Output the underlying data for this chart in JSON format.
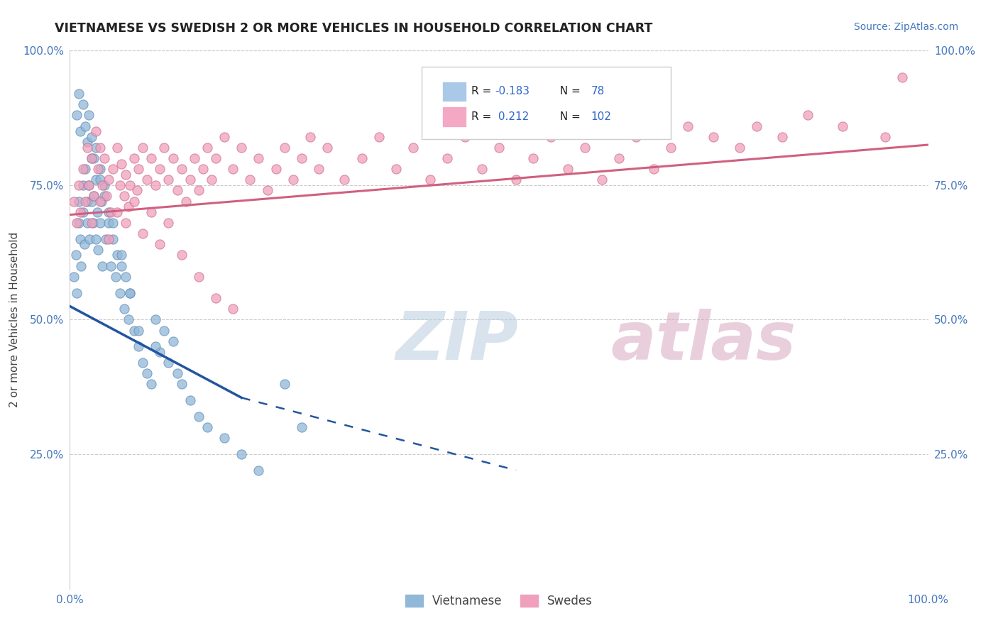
{
  "title": "VIETNAMESE VS SWEDISH 2 OR MORE VEHICLES IN HOUSEHOLD CORRELATION CHART",
  "source_text": "Source: ZipAtlas.com",
  "ylabel": "2 or more Vehicles in Household",
  "watermark_zip": "ZIP",
  "watermark_atlas": "atlas",
  "blue_color": "#92b8d8",
  "blue_edge": "#6090b8",
  "pink_color": "#f0a0bc",
  "pink_edge": "#d07090",
  "blue_line_color": "#2255a0",
  "pink_line_color": "#d06080",
  "xlim": [
    0.0,
    1.0
  ],
  "ylim": [
    0.0,
    1.0
  ],
  "blue_trend_x0": 0.0,
  "blue_trend_y0": 0.525,
  "blue_trend_x1": 0.2,
  "blue_trend_y1": 0.355,
  "blue_trend_x2": 0.52,
  "blue_trend_y2": 0.22,
  "pink_trend_x0": 0.0,
  "pink_trend_y0": 0.695,
  "pink_trend_x1": 1.0,
  "pink_trend_y1": 0.825,
  "blue_scatter_x": [
    0.005,
    0.007,
    0.008,
    0.01,
    0.01,
    0.012,
    0.013,
    0.015,
    0.015,
    0.017,
    0.018,
    0.02,
    0.02,
    0.022,
    0.023,
    0.025,
    0.025,
    0.027,
    0.028,
    0.03,
    0.03,
    0.032,
    0.033,
    0.035,
    0.035,
    0.037,
    0.038,
    0.04,
    0.042,
    0.045,
    0.048,
    0.05,
    0.053,
    0.055,
    0.058,
    0.06,
    0.063,
    0.065,
    0.068,
    0.07,
    0.075,
    0.08,
    0.085,
    0.09,
    0.095,
    0.1,
    0.105,
    0.11,
    0.115,
    0.12,
    0.125,
    0.13,
    0.14,
    0.15,
    0.16,
    0.18,
    0.2,
    0.22,
    0.25,
    0.27,
    0.008,
    0.01,
    0.012,
    0.015,
    0.018,
    0.02,
    0.022,
    0.025,
    0.028,
    0.03,
    0.035,
    0.04,
    0.045,
    0.05,
    0.06,
    0.07,
    0.08,
    0.1
  ],
  "blue_scatter_y": [
    0.58,
    0.62,
    0.55,
    0.68,
    0.72,
    0.65,
    0.6,
    0.75,
    0.7,
    0.64,
    0.78,
    0.72,
    0.68,
    0.75,
    0.65,
    0.8,
    0.72,
    0.68,
    0.73,
    0.76,
    0.65,
    0.7,
    0.63,
    0.78,
    0.68,
    0.72,
    0.6,
    0.75,
    0.65,
    0.68,
    0.6,
    0.65,
    0.58,
    0.62,
    0.55,
    0.6,
    0.52,
    0.58,
    0.5,
    0.55,
    0.48,
    0.45,
    0.42,
    0.4,
    0.38,
    0.5,
    0.44,
    0.48,
    0.42,
    0.46,
    0.4,
    0.38,
    0.35,
    0.32,
    0.3,
    0.28,
    0.25,
    0.22,
    0.38,
    0.3,
    0.88,
    0.92,
    0.85,
    0.9,
    0.86,
    0.83,
    0.88,
    0.84,
    0.8,
    0.82,
    0.76,
    0.73,
    0.7,
    0.68,
    0.62,
    0.55,
    0.48,
    0.45
  ],
  "pink_scatter_x": [
    0.005,
    0.008,
    0.01,
    0.012,
    0.015,
    0.018,
    0.02,
    0.022,
    0.025,
    0.028,
    0.03,
    0.033,
    0.035,
    0.038,
    0.04,
    0.043,
    0.045,
    0.048,
    0.05,
    0.055,
    0.058,
    0.06,
    0.063,
    0.065,
    0.068,
    0.07,
    0.075,
    0.078,
    0.08,
    0.085,
    0.09,
    0.095,
    0.1,
    0.105,
    0.11,
    0.115,
    0.12,
    0.125,
    0.13,
    0.135,
    0.14,
    0.145,
    0.15,
    0.155,
    0.16,
    0.165,
    0.17,
    0.18,
    0.19,
    0.2,
    0.21,
    0.22,
    0.23,
    0.24,
    0.25,
    0.26,
    0.27,
    0.28,
    0.29,
    0.3,
    0.32,
    0.34,
    0.36,
    0.38,
    0.4,
    0.42,
    0.44,
    0.46,
    0.48,
    0.5,
    0.52,
    0.54,
    0.56,
    0.58,
    0.6,
    0.62,
    0.64,
    0.66,
    0.68,
    0.7,
    0.72,
    0.75,
    0.78,
    0.8,
    0.83,
    0.86,
    0.9,
    0.95,
    0.97,
    0.025,
    0.035,
    0.045,
    0.055,
    0.065,
    0.075,
    0.085,
    0.095,
    0.105,
    0.115,
    0.13,
    0.15,
    0.17,
    0.19
  ],
  "pink_scatter_y": [
    0.72,
    0.68,
    0.75,
    0.7,
    0.78,
    0.72,
    0.82,
    0.75,
    0.8,
    0.73,
    0.85,
    0.78,
    0.82,
    0.75,
    0.8,
    0.73,
    0.76,
    0.7,
    0.78,
    0.82,
    0.75,
    0.79,
    0.73,
    0.77,
    0.71,
    0.75,
    0.8,
    0.74,
    0.78,
    0.82,
    0.76,
    0.8,
    0.75,
    0.78,
    0.82,
    0.76,
    0.8,
    0.74,
    0.78,
    0.72,
    0.76,
    0.8,
    0.74,
    0.78,
    0.82,
    0.76,
    0.8,
    0.84,
    0.78,
    0.82,
    0.76,
    0.8,
    0.74,
    0.78,
    0.82,
    0.76,
    0.8,
    0.84,
    0.78,
    0.82,
    0.76,
    0.8,
    0.84,
    0.78,
    0.82,
    0.76,
    0.8,
    0.84,
    0.78,
    0.82,
    0.76,
    0.8,
    0.84,
    0.78,
    0.82,
    0.76,
    0.8,
    0.84,
    0.78,
    0.82,
    0.86,
    0.84,
    0.82,
    0.86,
    0.84,
    0.88,
    0.86,
    0.84,
    0.95,
    0.68,
    0.72,
    0.65,
    0.7,
    0.68,
    0.72,
    0.66,
    0.7,
    0.64,
    0.68,
    0.62,
    0.58,
    0.54,
    0.52
  ]
}
